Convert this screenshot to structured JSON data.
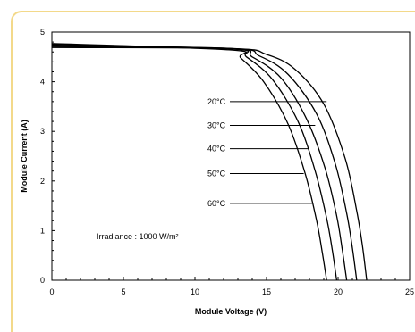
{
  "chart_data": {
    "type": "line",
    "title": "",
    "xlabel": "Module Voltage (V)",
    "ylabel": "Module Current (A)",
    "xlim": [
      0,
      25
    ],
    "ylim": [
      0,
      5
    ],
    "xticks": [
      "0",
      "5",
      "10",
      "15",
      "20",
      "25"
    ],
    "yticks": [
      "0",
      "1",
      "2",
      "3",
      "4",
      "5"
    ],
    "grid": false,
    "legend": "inline-labels",
    "annotation": "Irradiance : 1000 W/m²",
    "series": [
      {
        "name": "20°C",
        "isc": 4.69,
        "voc": 22.0,
        "points": [
          [
            0,
            4.69
          ],
          [
            12.5,
            4.67
          ],
          [
            15,
            4.55
          ],
          [
            17,
            4.25
          ],
          [
            19,
            3.55
          ],
          [
            20.5,
            2.45
          ],
          [
            21.3,
            1.4
          ],
          [
            21.7,
            0.7
          ],
          [
            22.0,
            0.0
          ]
        ]
      },
      {
        "name": "30°C",
        "isc": 4.71,
        "voc": 21.3,
        "points": [
          [
            0,
            4.71
          ],
          [
            12.5,
            4.67
          ],
          [
            14.5,
            4.52
          ],
          [
            16.5,
            4.15
          ],
          [
            18.5,
            3.35
          ],
          [
            19.8,
            2.35
          ],
          [
            20.6,
            1.35
          ],
          [
            21.0,
            0.65
          ],
          [
            21.3,
            0.0
          ]
        ]
      },
      {
        "name": "40°C",
        "isc": 4.73,
        "voc": 20.6,
        "points": [
          [
            0,
            4.73
          ],
          [
            12.5,
            4.67
          ],
          [
            14,
            4.5
          ],
          [
            16,
            4.08
          ],
          [
            17.8,
            3.25
          ],
          [
            19.1,
            2.25
          ],
          [
            19.9,
            1.3
          ],
          [
            20.3,
            0.6
          ],
          [
            20.6,
            0.0
          ]
        ]
      },
      {
        "name": "50°C",
        "isc": 4.75,
        "voc": 19.9,
        "points": [
          [
            0,
            4.75
          ],
          [
            12.5,
            4.66
          ],
          [
            13.6,
            4.5
          ],
          [
            15.4,
            4.05
          ],
          [
            17.2,
            3.2
          ],
          [
            18.4,
            2.2
          ],
          [
            19.2,
            1.25
          ],
          [
            19.6,
            0.6
          ],
          [
            19.9,
            0.0
          ]
        ]
      },
      {
        "name": "60°C",
        "isc": 4.77,
        "voc": 19.2,
        "points": [
          [
            0,
            4.77
          ],
          [
            12.5,
            4.64
          ],
          [
            13.2,
            4.48
          ],
          [
            14.8,
            4.0
          ],
          [
            16.5,
            3.15
          ],
          [
            17.7,
            2.15
          ],
          [
            18.5,
            1.2
          ],
          [
            18.9,
            0.55
          ],
          [
            19.2,
            0.0
          ]
        ]
      }
    ],
    "leader_lines": [
      {
        "label": "20°C",
        "y": 3.6,
        "to_x": 19.2
      },
      {
        "label": "30°C",
        "y": 3.12,
        "to_x": 18.4
      },
      {
        "label": "40°C",
        "y": 2.65,
        "to_x": 18.0
      },
      {
        "label": "50°C",
        "y": 2.15,
        "to_x": 17.6
      },
      {
        "label": "60°C",
        "y": 1.55,
        "to_x": 18.2
      }
    ]
  }
}
